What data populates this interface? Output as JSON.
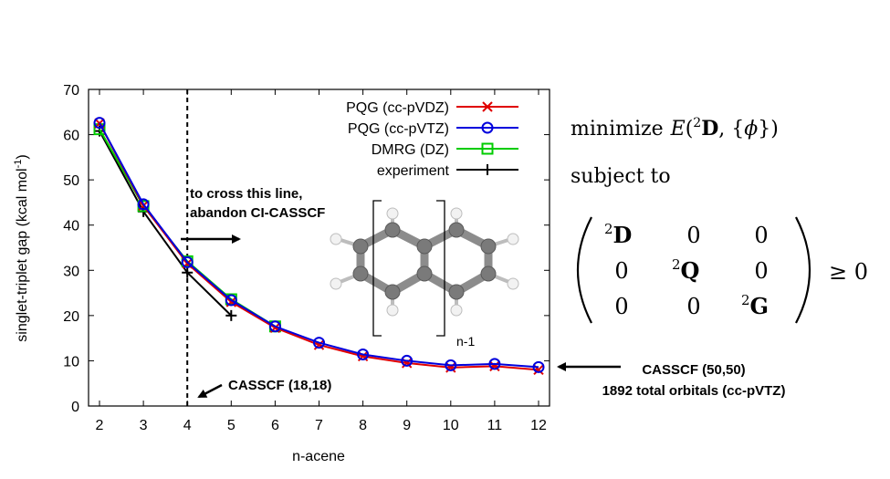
{
  "chart_data": {
    "type": "line",
    "xlabel": "n-acene",
    "ylabel": "singlet-triplet gap (kcal mol",
    "ylabel_sup": "-1",
    "ylabel_close": ")",
    "xlim": [
      2,
      12
    ],
    "ylim": [
      0,
      70
    ],
    "xticks": [
      2,
      3,
      4,
      5,
      6,
      7,
      8,
      9,
      10,
      11,
      12
    ],
    "yticks": [
      0,
      10,
      20,
      30,
      40,
      50,
      60,
      70
    ],
    "legend_position": "top-right",
    "series": [
      {
        "name": "PQG (cc-pVDZ)",
        "color": "#e00000",
        "marker": "x",
        "x": [
          2,
          3,
          4,
          5,
          6,
          7,
          8,
          9,
          10,
          11,
          12
        ],
        "y": [
          62.5,
          44.3,
          31.5,
          23.0,
          17.3,
          13.5,
          11.0,
          9.5,
          8.5,
          8.8,
          8.0
        ]
      },
      {
        "name": "PQG (cc-pVTZ)",
        "color": "#0000dd",
        "marker": "circle",
        "x": [
          2,
          3,
          4,
          5,
          6,
          7,
          8,
          9,
          10,
          11,
          12
        ],
        "y": [
          62.6,
          44.6,
          31.8,
          23.4,
          17.6,
          14.0,
          11.4,
          10.0,
          9.0,
          9.3,
          8.6
        ]
      },
      {
        "name": "DMRG (DZ)",
        "color": "#00cc00",
        "marker": "square",
        "x": [
          2,
          3,
          4,
          5,
          6
        ],
        "y": [
          61.2,
          44.2,
          32.0,
          23.6,
          17.6
        ]
      },
      {
        "name": "experiment",
        "color": "#000000",
        "marker": "plus",
        "x": [
          2,
          3,
          4,
          5
        ],
        "y": [
          60.8,
          43.0,
          29.5,
          20.0
        ]
      }
    ],
    "vline_x": 4,
    "annotations": {
      "cross_line_1": "to cross this line,",
      "cross_line_2": "abandon CI-CASSCF",
      "casscf_small": "CASSCF (18,18)",
      "casscf_large_1": "CASSCF (50,50)",
      "casscf_large_2": "1892 total orbitals (cc-pVTZ)",
      "molecule_label": "n-1"
    }
  },
  "equation": {
    "minimize_word": "minimize",
    "E": "E",
    "sup2": "2",
    "D": "D",
    "phi": "ϕ",
    "subject_to": "subject to",
    "m11": "D",
    "m12": "0",
    "m13": "0",
    "m21": "0",
    "m22": "Q",
    "m23": "0",
    "m31": "0",
    "m32": "0",
    "m33": "G",
    "geq": "≥ 0"
  }
}
